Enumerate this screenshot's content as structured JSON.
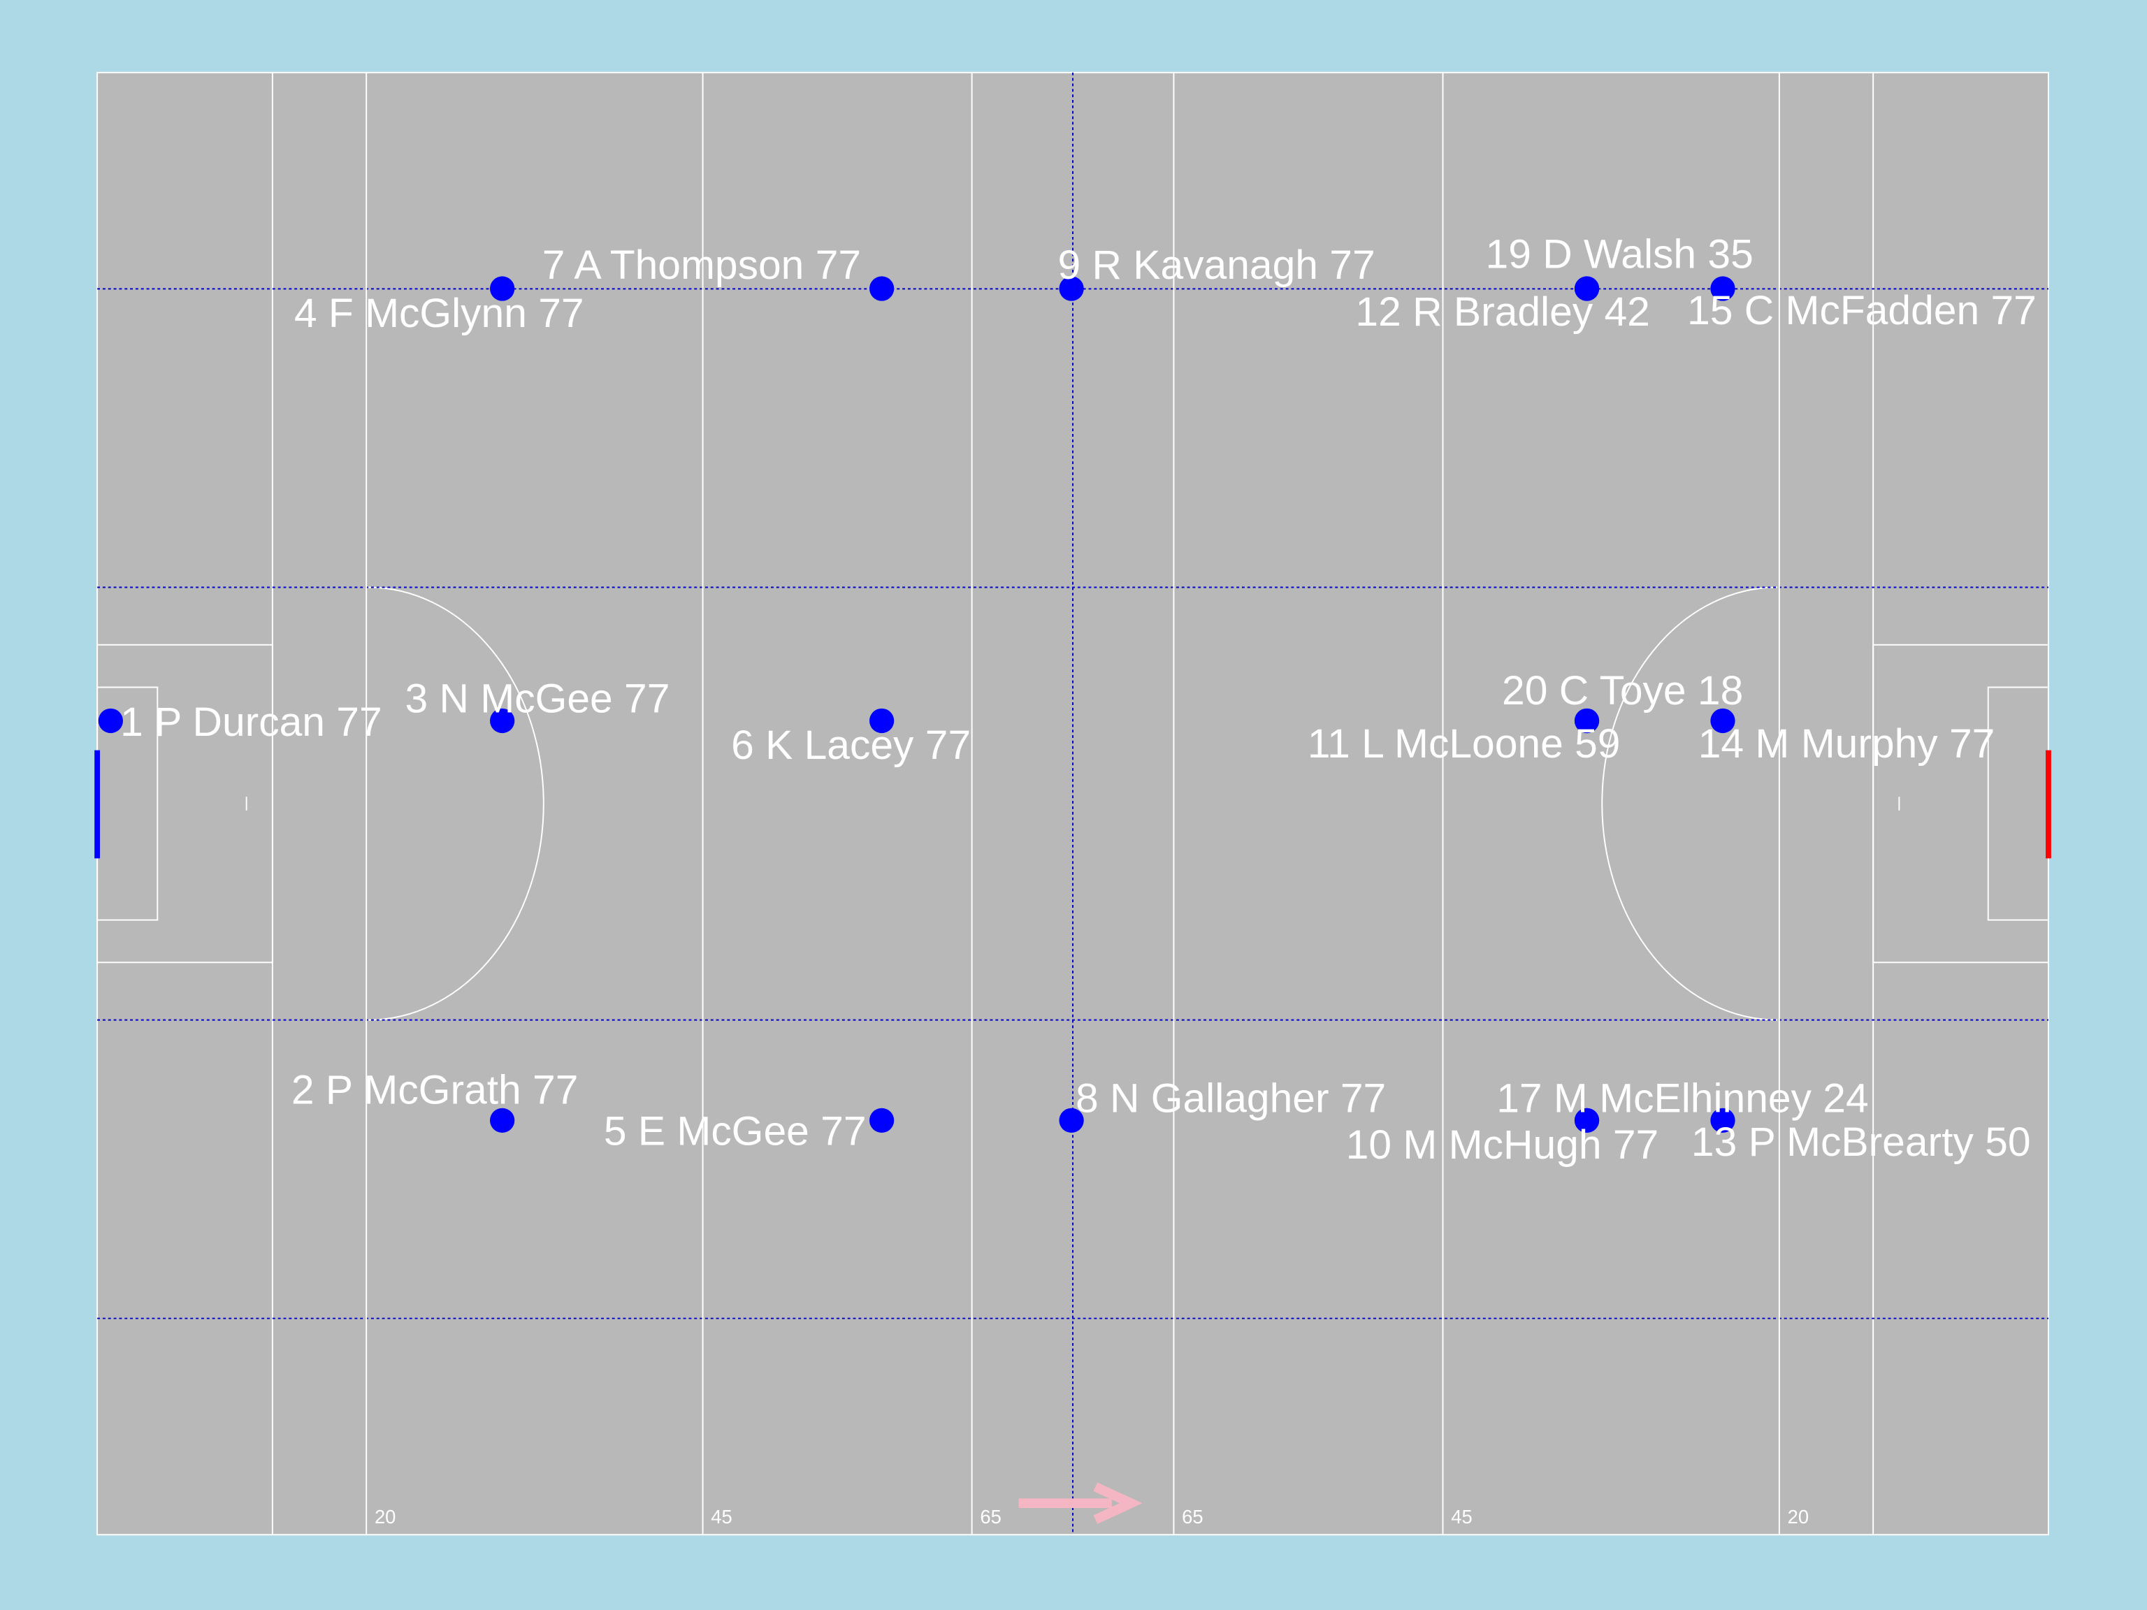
{
  "chart_data": {
    "type": "scatter",
    "labels": [
      "1 P Durcan 77",
      "3 N McGee 77",
      "4 F McGlynn 77",
      "7 A Thompson 77",
      "9 R Kavanagh 77",
      "19 D Walsh 35",
      "12 R Bradley 42",
      "15 C McFadden 77",
      "6 K Lacey 77",
      "20 C Toye 18",
      "11 L McLoone 59",
      "14 M Murphy 77",
      "2 P McGrath 77",
      "5 E McGee 77",
      "8 N Gallagher 77",
      "17 M McElhinney 24",
      "10 M McHugh 77",
      "13 P McBrearty 50"
    ],
    "x": [
      1.0,
      30.1,
      30.1,
      58.3,
      72.4,
      110.7,
      110.7,
      120.8,
      58.3,
      110.7,
      110.7,
      120.8,
      30.1,
      58.3,
      72.4,
      110.7,
      110.7,
      120.8
    ],
    "y": [
      39.9,
      39.9,
      13.3,
      13.3,
      13.3,
      13.3,
      13.3,
      13.3,
      39.9,
      39.9,
      39.9,
      39.9,
      64.5,
      64.5,
      64.5,
      64.5,
      64.5,
      64.5
    ],
    "color": "#0000ff",
    "xlim": [
      0,
      145
    ],
    "ylim": [
      0,
      90
    ],
    "xticks": [
      20,
      45,
      65,
      {
        "value": 80,
        "label": "65"
      },
      {
        "value": 100,
        "label": "45"
      },
      {
        "value": 125,
        "label": "20"
      }
    ]
  }
}
